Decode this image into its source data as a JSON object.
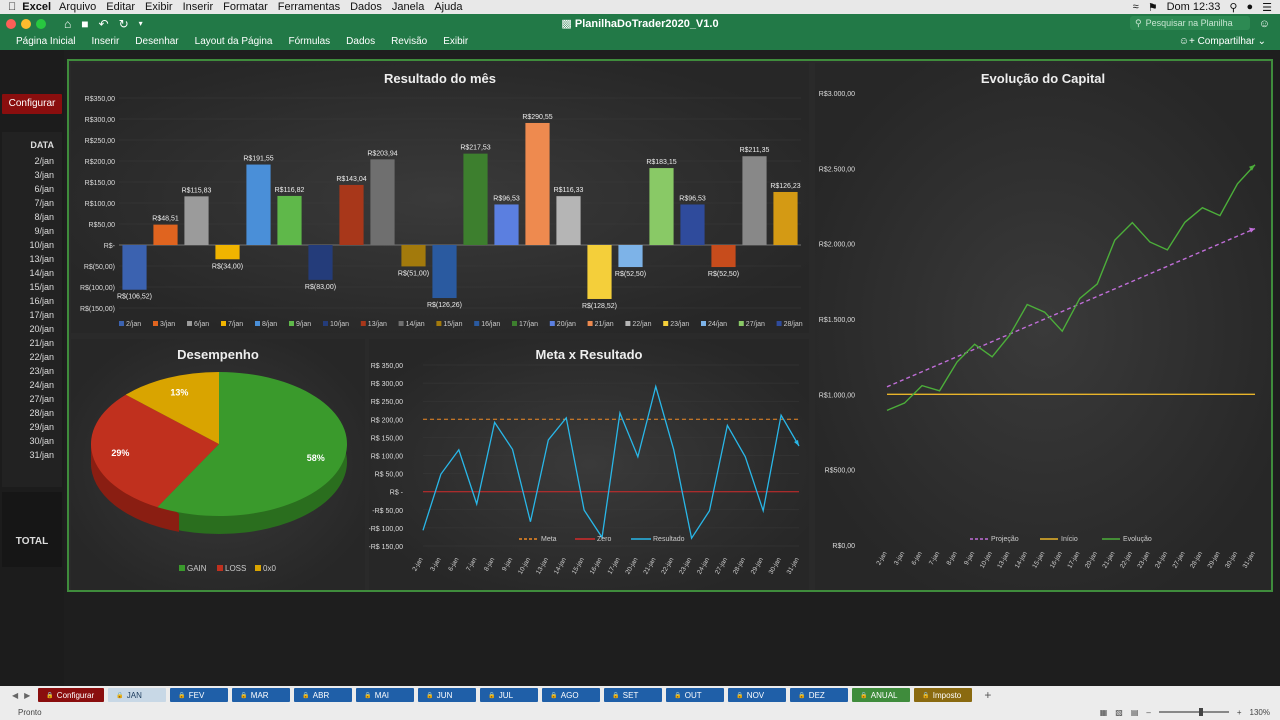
{
  "macbar": {
    "app": "Excel",
    "menus": [
      "Arquivo",
      "Editar",
      "Exibir",
      "Inserir",
      "Formatar",
      "Ferramentas",
      "Dados",
      "Janela",
      "Ajuda"
    ],
    "clock": "Dom 12:33"
  },
  "window": {
    "title": "PlanilhaDoTrader2020_V1.0",
    "search_placeholder": "Pesquisar na Planilha",
    "share": "Compartilhar"
  },
  "ribbon": {
    "tabs": [
      "Página Inicial",
      "Inserir",
      "Desenhar",
      "Layout da Página",
      "Fórmulas",
      "Dados",
      "Revisão",
      "Exibir"
    ]
  },
  "sidebar": {
    "config_button": "Configurar",
    "date_header": "DATA",
    "dates": [
      "2/jan",
      "3/jan",
      "6/jan",
      "7/jan",
      "8/jan",
      "9/jan",
      "10/jan",
      "13/jan",
      "14/jan",
      "15/jan",
      "16/jan",
      "17/jan",
      "20/jan",
      "21/jan",
      "22/jan",
      "23/jan",
      "24/jan",
      "27/jan",
      "28/jan",
      "29/jan",
      "30/jan",
      "31/jan"
    ],
    "total": "TOTAL"
  },
  "chart_data": [
    {
      "type": "bar",
      "title": "Resultado do mês",
      "categories": [
        "2/jan",
        "3/jan",
        "6/jan",
        "7/jan",
        "8/jan",
        "9/jan",
        "10/jan",
        "13/jan",
        "14/jan",
        "15/jan",
        "16/jan",
        "17/jan",
        "20/jan",
        "21/jan",
        "22/jan",
        "23/jan",
        "24/jan",
        "27/jan",
        "28/jan",
        "29/jan",
        "30/jan",
        "31/jan"
      ],
      "values": [
        -106.52,
        48.51,
        115.83,
        -34.0,
        191.55,
        116.82,
        -83.0,
        143.04,
        203.94,
        -51.0,
        -126.26,
        217.53,
        96.53,
        290.55,
        116.33,
        -128.52,
        -52.5,
        183.15,
        96.53,
        -52.5,
        211.35,
        126.23
      ],
      "data_labels": [
        "R$(106,52)",
        "R$48,51",
        "R$115,83",
        "R$(34,00)",
        "R$191,55",
        "R$116,82",
        "R$(83,00)",
        "R$143,04",
        "R$203,94",
        "R$(51,00)",
        "R$(126,26)",
        "R$217,53",
        "R$96,53",
        "R$290,55",
        "R$116,33",
        "R$(128,52)",
        "R$(52,50)",
        "R$183,15",
        "R$96,53",
        "R$(52,50)",
        "R$211,35",
        "R$126,23"
      ],
      "colors": [
        "#3b62b0",
        "#e0641f",
        "#9b9b9b",
        "#f0b400",
        "#4a8fd8",
        "#5fb84a",
        "#243c7a",
        "#a8371a",
        "#6f6f6f",
        "#a37a0c",
        "#2a5aa0",
        "#3d7f2e",
        "#5b7fe0",
        "#ee8a4f",
        "#b5b5b5",
        "#f4cf3a",
        "#7db3e8",
        "#89c966",
        "#2f4b9c",
        "#c74c1c",
        "#888888",
        "#d49a14"
      ],
      "yticks": [
        "R$350,00",
        "R$300,00",
        "R$250,00",
        "R$200,00",
        "R$150,00",
        "R$100,00",
        "R$50,00",
        "R$-",
        "R$(50,00)",
        "R$(100,00)",
        "R$(150,00)"
      ],
      "ylim": [
        -150,
        350
      ]
    },
    {
      "type": "pie",
      "title": "Desempenho",
      "categories": [
        "GAIN",
        "LOSS",
        "0x0"
      ],
      "values": [
        58,
        29,
        13
      ],
      "labels": [
        "58%",
        "29%",
        "13%"
      ],
      "colors": [
        "#3a9a2c",
        "#c0301e",
        "#d9a400"
      ]
    },
    {
      "type": "line",
      "title": "Meta x Resultado",
      "x": [
        "2-jan",
        "3-jan",
        "6-jan",
        "7-jan",
        "8-jan",
        "9-jan",
        "10-jan",
        "13-jan",
        "14-jan",
        "15-jan",
        "16-jan",
        "17-jan",
        "20-jan",
        "21-jan",
        "22-jan",
        "23-jan",
        "24-jan",
        "27-jan",
        "28-jan",
        "29-jan",
        "30-jan",
        "31-jan"
      ],
      "series": [
        {
          "name": "Meta",
          "values": [
            200,
            200,
            200,
            200,
            200,
            200,
            200,
            200,
            200,
            200,
            200,
            200,
            200,
            200,
            200,
            200,
            200,
            200,
            200,
            200,
            200,
            200
          ],
          "color": "#f08a24"
        },
        {
          "name": "Zero",
          "values": [
            0,
            0,
            0,
            0,
            0,
            0,
            0,
            0,
            0,
            0,
            0,
            0,
            0,
            0,
            0,
            0,
            0,
            0,
            0,
            0,
            0,
            0
          ],
          "color": "#d22b2b"
        },
        {
          "name": "Resultado",
          "values": [
            -106.52,
            48.51,
            115.83,
            -34.0,
            191.55,
            116.82,
            -83.0,
            143.04,
            203.94,
            -51.0,
            -126.26,
            217.53,
            96.53,
            290.55,
            116.33,
            -128.52,
            -52.5,
            183.15,
            96.53,
            -52.5,
            211.35,
            126.23
          ],
          "color": "#29b7e8"
        }
      ],
      "yticks": [
        "R$ 350,00",
        "R$ 300,00",
        "R$ 250,00",
        "R$ 200,00",
        "R$ 150,00",
        "R$ 100,00",
        "R$ 50,00",
        "R$ -",
        "-R$ 50,00",
        "-R$ 100,00",
        "-R$ 150,00"
      ],
      "ylim": [
        -150,
        350
      ]
    },
    {
      "type": "line",
      "title": "Evolução do Capital",
      "x": [
        "2-jan",
        "3-jan",
        "6-jan",
        "7-jan",
        "8-jan",
        "9-jan",
        "10-jan",
        "13-jan",
        "14-jan",
        "15-jan",
        "16-jan",
        "17-jan",
        "20-jan",
        "21-jan",
        "22-jan",
        "23-jan",
        "24-jan",
        "27-jan",
        "28-jan",
        "29-jan",
        "30-jan",
        "31-jan"
      ],
      "series": [
        {
          "name": "Projeção",
          "values": [
            1050,
            1100,
            1150,
            1200,
            1250,
            1300,
            1350,
            1400,
            1450,
            1500,
            1550,
            1600,
            1650,
            1700,
            1750,
            1800,
            1850,
            1900,
            1950,
            2000,
            2050,
            2100
          ],
          "color": "#c06ed8"
        },
        {
          "name": "Início",
          "values": [
            1000,
            1000,
            1000,
            1000,
            1000,
            1000,
            1000,
            1000,
            1000,
            1000,
            1000,
            1000,
            1000,
            1000,
            1000,
            1000,
            1000,
            1000,
            1000,
            1000,
            1000,
            1000
          ],
          "color": "#e8b42a"
        },
        {
          "name": "Evolução",
          "values": [
            893.48,
            942.0,
            1057.82,
            1023.82,
            1215.37,
            1332.19,
            1249.19,
            1392.23,
            1596.17,
            1545.17,
            1418.91,
            1636.44,
            1732.97,
            2023.52,
            2139.85,
            2011.33,
            1958.83,
            2141.98,
            2238.51,
            2186.01,
            2397.36,
            2523.59
          ],
          "color": "#4cae3a"
        }
      ],
      "yticks": [
        "R$3.000,00",
        "R$2.500,00",
        "R$2.000,00",
        "R$1.500,00",
        "R$1.000,00",
        "R$500,00",
        "R$0,00"
      ],
      "ylim": [
        0,
        3000
      ]
    }
  ],
  "sheets": [
    {
      "label": "Configurar",
      "color": "#8a0e0e"
    },
    {
      "label": "JAN",
      "color": "#c8d8e6"
    },
    {
      "label": "FEV",
      "color": "#1f5fa8"
    },
    {
      "label": "MAR",
      "color": "#1f5fa8"
    },
    {
      "label": "ABR",
      "color": "#1f5fa8"
    },
    {
      "label": "MAI",
      "color": "#1f5fa8"
    },
    {
      "label": "JUN",
      "color": "#1f5fa8"
    },
    {
      "label": "JUL",
      "color": "#1f5fa8"
    },
    {
      "label": "AGO",
      "color": "#1f5fa8"
    },
    {
      "label": "SET",
      "color": "#1f5fa8"
    },
    {
      "label": "OUT",
      "color": "#1f5fa8"
    },
    {
      "label": "NOV",
      "color": "#1f5fa8"
    },
    {
      "label": "DEZ",
      "color": "#1f5fa8"
    },
    {
      "label": "ANUAL",
      "color": "#3f8c3c"
    },
    {
      "label": "Imposto",
      "color": "#8a6a10"
    }
  ],
  "status": {
    "ready": "Pronto",
    "zoom": "130%"
  }
}
